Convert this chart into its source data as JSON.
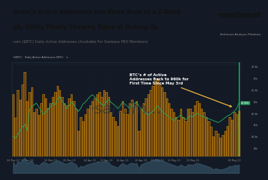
{
  "title_line1": "itcoin’s Active Addresses Has Risen Back to a 3-Week",
  "title_line2": "gh, Utility Finally Showing Signs of Picking Up",
  "subtitle": "coin ($BTC) Daily Active Addresses (Available For Sanbase PRO Members)",
  "santiment_logo": "·santiment",
  "behavior_text": "Behavior Analysis Platform",
  "annotation": "BTC’s # of Active\nAddresses Back to 960k for\nFirst Time Since May 3rd",
  "bg_header": "#ffffff",
  "chart_bg": "#131a25",
  "bar_fill": "#5a3a10",
  "bar_edge": "#c8820a",
  "line_color": "#26a660",
  "title_color": "#111111",
  "subtitle_color": "#666666",
  "annotation_color": "#ffffff",
  "arrow_color": "#e8b040",
  "watermark_color": "#1e3245",
  "right_bg": "#1a2535",
  "x_labels": [
    "04 Mar 23",
    "10 Mar 23",
    "20 Mar 23",
    "26 Mar 23",
    "04 Apr 23",
    "10 Apr 23",
    "16 Apr 23",
    "26 Apr 23",
    "04 May 23",
    "11 May 23",
    "19 May 23",
    "28 May 23"
  ],
  "bar_data": [
    0.68,
    0.42,
    0.72,
    0.62,
    0.78,
    0.92,
    0.6,
    0.7,
    0.75,
    0.48,
    0.52,
    0.45,
    0.58,
    0.68,
    0.63,
    0.53,
    0.58,
    0.65,
    0.7,
    0.77,
    0.72,
    0.65,
    0.58,
    0.56,
    0.63,
    0.68,
    0.6,
    0.52,
    0.28,
    0.43,
    0.38,
    0.46,
    0.52,
    0.56,
    0.6,
    0.63,
    0.68,
    0.7,
    0.65,
    0.72,
    0.7,
    0.65,
    0.48,
    0.43,
    0.38,
    0.33,
    0.5,
    0.6,
    0.52,
    0.46,
    0.58,
    0.62,
    0.56,
    0.6,
    0.28,
    0.52,
    0.58,
    0.63,
    0.68,
    0.72,
    0.77,
    0.82,
    0.85,
    0.79,
    0.75,
    0.7,
    0.63,
    0.58,
    0.52,
    0.48,
    0.43,
    0.4,
    0.52,
    0.43,
    0.38,
    0.52,
    0.52,
    0.48,
    0.56,
    0.6,
    0.58,
    0.52,
    0.48,
    0.43,
    0.38,
    0.32,
    0.22,
    0.28,
    0.25,
    0.2,
    0.23,
    0.28,
    0.33,
    0.43,
    0.4,
    0.48,
    0.46,
    0.5
  ],
  "line_data": [
    0.22,
    0.2,
    0.24,
    0.28,
    0.32,
    0.35,
    0.28,
    0.5,
    0.54,
    0.56,
    0.58,
    0.54,
    0.5,
    0.46,
    0.48,
    0.51,
    0.54,
    0.58,
    0.56,
    0.62,
    0.65,
    0.6,
    0.57,
    0.52,
    0.55,
    0.59,
    0.57,
    0.52,
    0.49,
    0.52,
    0.57,
    0.59,
    0.62,
    0.65,
    0.67,
    0.65,
    0.62,
    0.59,
    0.57,
    0.55,
    0.59,
    0.62,
    0.59,
    0.57,
    0.55,
    0.52,
    0.55,
    0.59,
    0.57,
    0.55,
    0.52,
    0.55,
    0.57,
    0.59,
    0.55,
    0.52,
    0.49,
    0.47,
    0.45,
    0.47,
    0.49,
    0.52,
    0.55,
    0.52,
    0.49,
    0.47,
    0.45,
    0.43,
    0.41,
    0.39,
    0.41,
    0.43,
    0.45,
    0.42,
    0.4,
    0.42,
    0.44,
    0.43,
    0.45,
    0.47,
    0.45,
    0.44,
    0.43,
    0.42,
    0.41,
    0.4,
    0.39,
    0.38,
    0.37,
    0.38,
    0.4,
    0.42,
    0.44,
    0.45,
    0.47,
    0.49,
    0.52,
    0.58
  ],
  "price_labels": [
    "27.5k",
    "27k",
    "26.5k",
    "26k",
    "25.5k",
    "25k",
    "24.5k",
    "24k"
  ],
  "last_price_label": "26.85k"
}
